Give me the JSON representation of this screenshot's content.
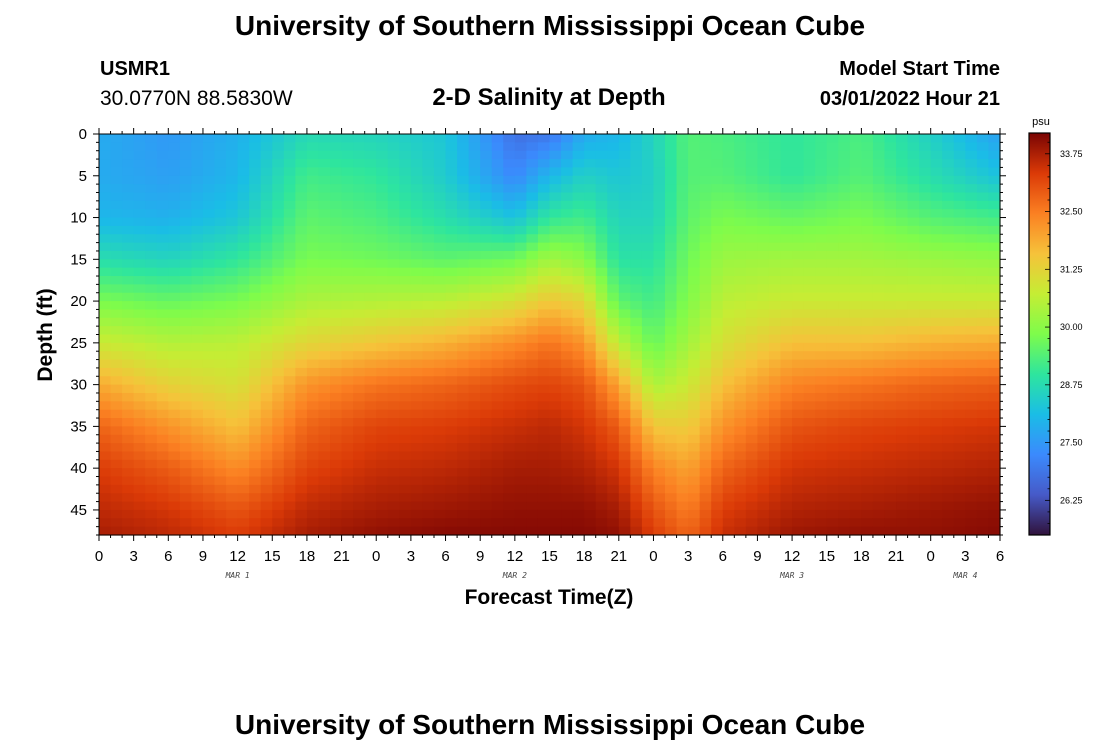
{
  "header": {
    "title": "University of Southern Mississippi Ocean Cube",
    "station": "USMR1",
    "coords": "30.0770N  88.5830W",
    "subtitle": "2-D Salinity at Depth",
    "model_label": "Model Start Time",
    "model_time": "03/01/2022 Hour 21"
  },
  "footer": {
    "title": "University of Southern Mississippi Ocean Cube"
  },
  "colorbar": {
    "unit": "psu",
    "ticks": [
      "33.75",
      "32.50",
      "31.25",
      "30.00",
      "28.75",
      "27.50",
      "26.25"
    ],
    "tick_values": [
      33.75,
      32.5,
      31.25,
      30.0,
      28.75,
      27.5,
      26.25
    ],
    "range": [
      25.5,
      34.2
    ]
  },
  "chart_data": {
    "type": "heatmap",
    "title": "2-D Salinity at Depth",
    "xlabel": "Forecast Time(Z)",
    "ylabel": "Depth (ft)",
    "x_tick_labels": [
      "0",
      "3",
      "6",
      "9",
      "12",
      "15",
      "18",
      "21",
      "0",
      "3",
      "6",
      "9",
      "12",
      "15",
      "18",
      "21",
      "0",
      "3",
      "6",
      "9",
      "12",
      "15",
      "18",
      "21",
      "0",
      "3",
      "6"
    ],
    "xlim": [
      0,
      78
    ],
    "y_tick_labels": [
      "0",
      "5",
      "10",
      "15",
      "20",
      "25",
      "30",
      "35",
      "40",
      "45"
    ],
    "y_tick_values": [
      0,
      5,
      10,
      15,
      20,
      25,
      30,
      35,
      40,
      45
    ],
    "ylim": [
      0,
      48
    ],
    "date_labels": [
      {
        "label": "MAR 1",
        "hour": 12
      },
      {
        "label": "MAR 2",
        "hour": 36
      },
      {
        "label": "MAR 3",
        "hour": 60
      },
      {
        "label": "MAR 4",
        "hour": 75
      }
    ],
    "depth_levels_ft": [
      0,
      5,
      10,
      15,
      20,
      25,
      30,
      35,
      40,
      45,
      48
    ],
    "profiles": [
      {
        "hour": 0,
        "salinity": [
          27.8,
          27.8,
          28.0,
          28.8,
          29.8,
          30.8,
          31.9,
          32.8,
          33.3,
          33.6,
          33.8
        ]
      },
      {
        "hour": 6,
        "salinity": [
          27.5,
          27.6,
          27.9,
          28.6,
          29.6,
          30.5,
          31.3,
          32.2,
          32.9,
          33.4,
          33.6
        ]
      },
      {
        "hour": 12,
        "salinity": [
          27.9,
          28.0,
          28.3,
          29.0,
          29.8,
          30.6,
          31.0,
          31.6,
          32.3,
          33.0,
          33.3
        ]
      },
      {
        "hour": 18,
        "salinity": [
          28.7,
          29.2,
          29.5,
          29.8,
          30.4,
          31.2,
          32.2,
          32.8,
          33.2,
          33.6,
          33.8
        ]
      },
      {
        "hour": 24,
        "salinity": [
          28.6,
          29.0,
          29.3,
          29.7,
          30.5,
          31.5,
          32.6,
          33.2,
          33.5,
          33.8,
          34.0
        ]
      },
      {
        "hour": 30,
        "salinity": [
          28.3,
          28.4,
          28.8,
          29.5,
          30.6,
          31.8,
          32.8,
          33.3,
          33.6,
          33.9,
          34.1
        ]
      },
      {
        "hour": 36,
        "salinity": [
          26.8,
          27.2,
          28.2,
          29.7,
          31.0,
          32.3,
          33.1,
          33.5,
          33.8,
          34.0,
          34.1
        ]
      },
      {
        "hour": 39,
        "salinity": [
          26.9,
          28.0,
          29.0,
          30.3,
          31.5,
          32.6,
          33.2,
          33.6,
          33.8,
          34.0,
          34.1
        ]
      },
      {
        "hour": 42,
        "salinity": [
          27.8,
          28.5,
          29.2,
          30.0,
          31.2,
          32.2,
          33.0,
          33.4,
          33.7,
          34.0,
          34.1
        ]
      },
      {
        "hour": 45,
        "salinity": [
          28.0,
          28.3,
          28.6,
          28.9,
          29.5,
          30.6,
          32.0,
          32.9,
          33.4,
          33.8,
          34.0
        ]
      },
      {
        "hour": 48,
        "salinity": [
          28.6,
          28.5,
          28.6,
          28.9,
          29.2,
          29.6,
          30.4,
          31.5,
          32.4,
          33.0,
          33.3
        ]
      },
      {
        "hour": 51,
        "salinity": [
          29.4,
          29.4,
          29.5,
          29.7,
          29.9,
          30.3,
          30.8,
          31.4,
          32.0,
          32.5,
          32.8
        ]
      },
      {
        "hour": 54,
        "salinity": [
          29.3,
          29.4,
          29.8,
          30.2,
          30.6,
          31.0,
          31.6,
          32.2,
          32.8,
          33.3,
          33.5
        ]
      },
      {
        "hour": 60,
        "salinity": [
          29.0,
          29.0,
          29.6,
          30.3,
          30.8,
          31.6,
          32.4,
          33.0,
          33.4,
          33.7,
          33.9
        ]
      },
      {
        "hour": 66,
        "salinity": [
          29.3,
          29.4,
          29.8,
          30.3,
          30.8,
          31.6,
          32.6,
          33.2,
          33.5,
          33.8,
          34.0
        ]
      },
      {
        "hour": 72,
        "salinity": [
          28.5,
          28.8,
          29.4,
          30.2,
          30.8,
          31.8,
          32.8,
          33.3,
          33.6,
          33.9,
          34.0
        ]
      },
      {
        "hour": 78,
        "salinity": [
          27.6,
          28.2,
          29.2,
          30.1,
          30.8,
          31.9,
          32.9,
          33.4,
          33.7,
          34.0,
          34.1
        ]
      }
    ]
  }
}
